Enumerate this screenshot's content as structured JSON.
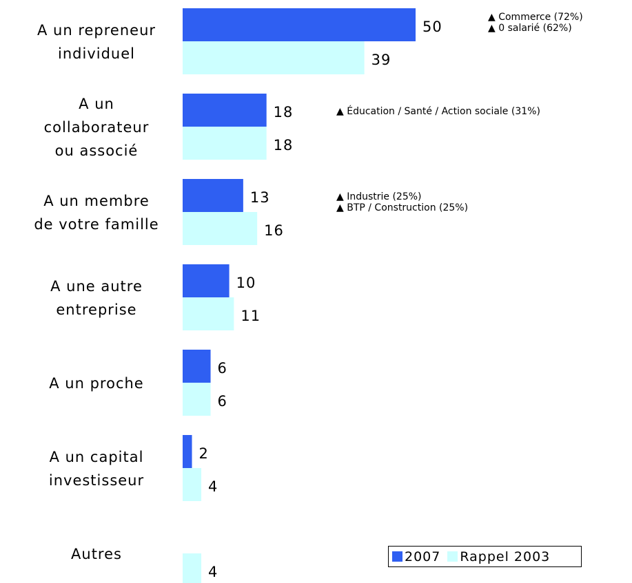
{
  "chart_data": {
    "type": "bar",
    "orientation": "horizontal",
    "categories": [
      "A un repreneur\nindividuel",
      "A un\ncollaborateur\nou associé",
      "A un membre\nde votre famille",
      "A une autre\nentreprise",
      "A un proche",
      "A un capital\ninvestisseur",
      "Autres"
    ],
    "series": [
      {
        "name": "2007",
        "color": "#2f5ff2",
        "values": [
          50,
          18,
          13,
          10,
          6,
          2,
          null
        ]
      },
      {
        "name": "Rappel 2003",
        "color": "#ccffff",
        "values": [
          39,
          18,
          16,
          11,
          6,
          4,
          4
        ]
      }
    ],
    "annotations": [
      [
        "▲ Commerce (72%)",
        "▲ 0 salarié (62%)"
      ],
      [
        "▲ Éducation / Santé / Action sociale (31%)"
      ],
      [
        "▲ Industrie (25%)",
        "▲ BTP / Construction (25%)"
      ]
    ],
    "legend": "bottom-right"
  }
}
